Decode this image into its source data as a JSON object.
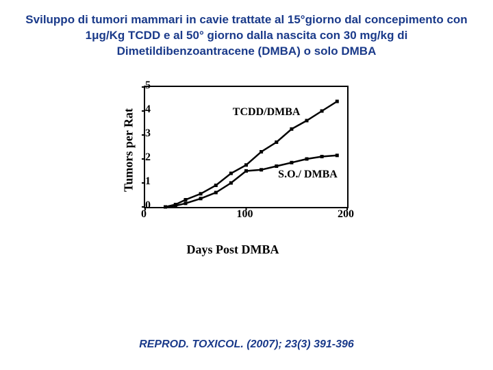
{
  "title_text": "Sviluppo di tumori mammari in cavie trattate al 15°giorno dal concepimento con 1μg/Kg TCDD e al 50° giorno dalla nascita con 30 mg/kg di Dimetildibenzoantracene (DMBA) o solo DMBA",
  "title_color": "#1a3a8a",
  "title_fontsize": 17,
  "citation_text": "REPROD. TOXICOL. (2007); 23(3) 391-396",
  "citation_color": "#1a3a8a",
  "chart": {
    "type": "line",
    "xlabel": "Days Post DMBA",
    "ylabel": "Tumors per Rat",
    "xlim": [
      0,
      200
    ],
    "ylim": [
      0,
      5
    ],
    "xticks": [
      0,
      100,
      200
    ],
    "yticks": [
      0,
      1,
      2,
      3,
      4,
      5
    ],
    "tick_fontsize": 16,
    "label_fontsize": 18,
    "axis_color": "#000000",
    "line_color": "#000000",
    "line_width": 2.5,
    "background_color": "#ffffff",
    "series": [
      {
        "name": "TCDD/DMBA",
        "label_pos_x": 88,
        "label_pos_y": 3.9,
        "x": [
          20,
          30,
          40,
          55,
          70,
          85,
          100,
          115,
          130,
          145,
          160,
          175,
          190
        ],
        "y": [
          0.0,
          0.1,
          0.3,
          0.55,
          0.9,
          1.4,
          1.75,
          2.3,
          2.7,
          3.25,
          3.6,
          4.0,
          4.4
        ]
      },
      {
        "name": "S.O./ DMBA",
        "label_pos_x": 133,
        "label_pos_y": 1.3,
        "x": [
          20,
          30,
          40,
          55,
          70,
          85,
          100,
          115,
          130,
          145,
          160,
          175,
          190
        ],
        "y": [
          0.0,
          0.05,
          0.15,
          0.35,
          0.6,
          1.0,
          1.5,
          1.55,
          1.7,
          1.85,
          2.0,
          2.1,
          2.15
        ]
      }
    ]
  }
}
